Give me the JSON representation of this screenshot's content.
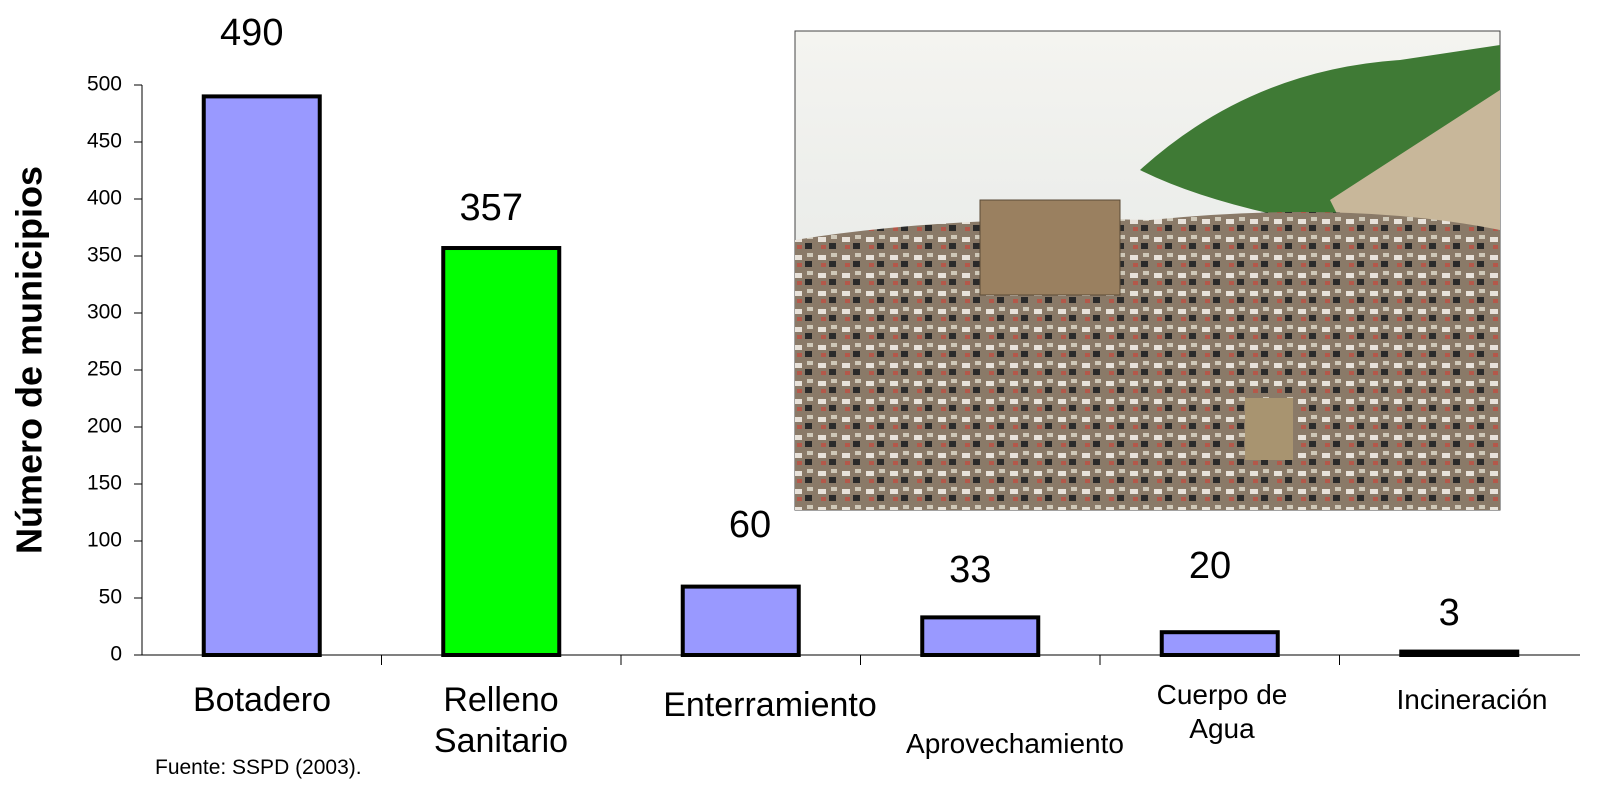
{
  "chart_data": {
    "type": "bar",
    "y_label": "Número de municipios",
    "categories": [
      "Botadero",
      "Relleno Sanitario",
      "Enterramiento",
      "Aprovechamiento",
      "Cuerpo de Agua",
      "Incineración"
    ],
    "values": [
      490,
      357,
      60,
      33,
      20,
      3
    ],
    "colors": [
      "#9999ff",
      "#00ff00",
      "#9999ff",
      "#9999ff",
      "#9999ff",
      "#000000"
    ],
    "ylim": [
      0,
      500
    ],
    "yticks": [
      0,
      50,
      100,
      150,
      200,
      250,
      300,
      350,
      400,
      450,
      500
    ],
    "source": "Fuente: SSPD (2003)."
  }
}
